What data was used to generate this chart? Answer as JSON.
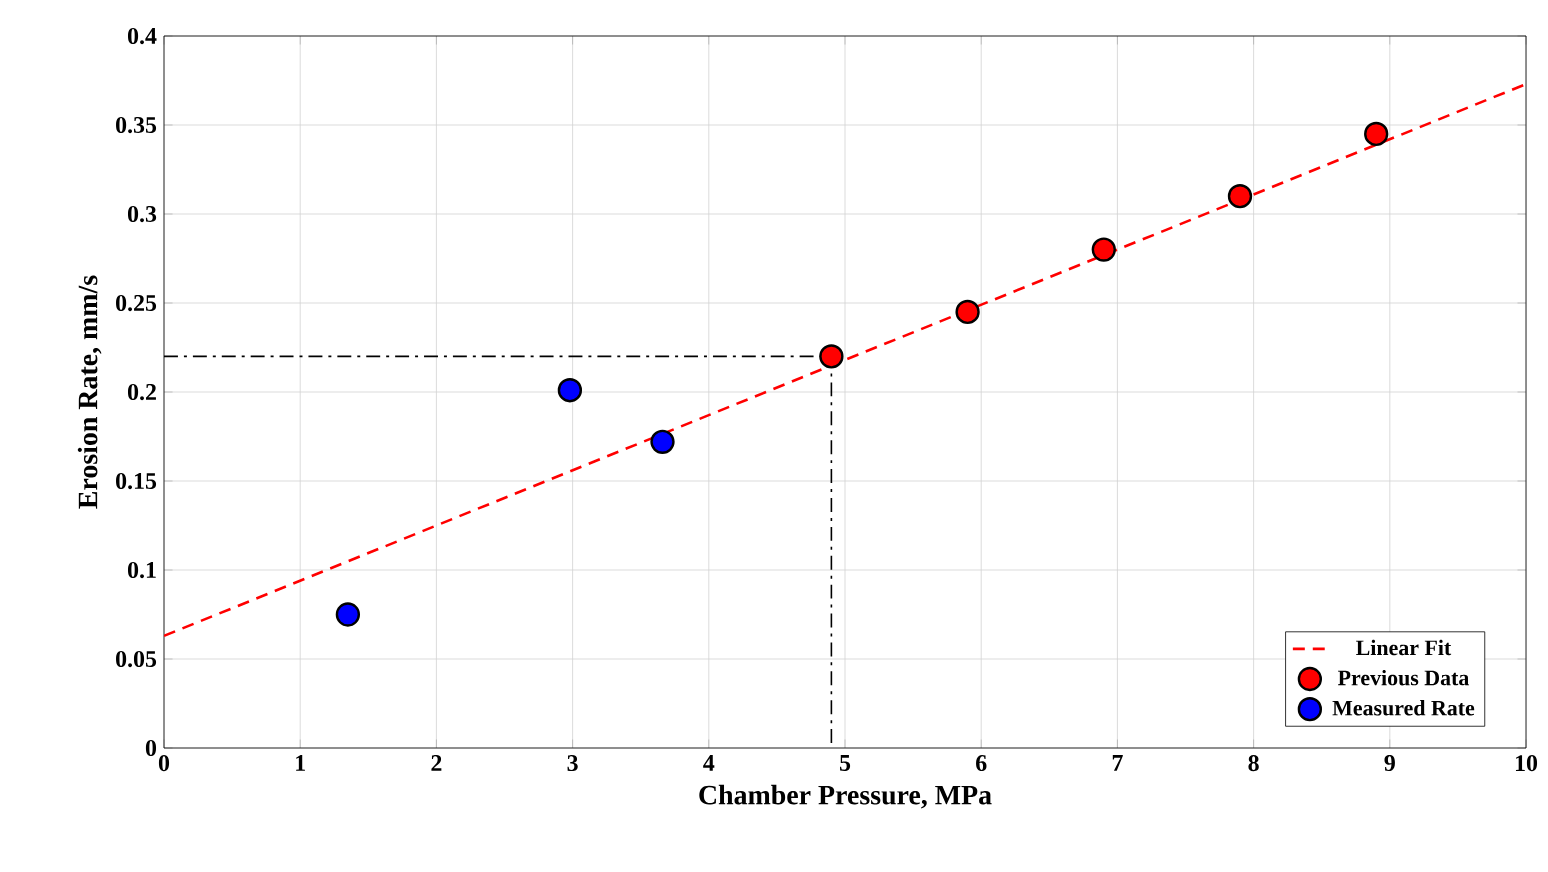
{
  "chart_data": {
    "type": "scatter",
    "xlabel": "Chamber Pressure,  MPa",
    "ylabel": "Erosion Rate,  mm/s",
    "xlim": [
      0,
      10
    ],
    "ylim": [
      0,
      0.4
    ],
    "xticks": [
      0,
      1,
      2,
      3,
      4,
      5,
      6,
      7,
      8,
      9,
      10
    ],
    "yticks": [
      0,
      0.05,
      0.1,
      0.15,
      0.2,
      0.25,
      0.3,
      0.35,
      0.4
    ],
    "grid": true,
    "legend": "bottom right",
    "marker": "circle",
    "series": [
      {
        "name": "Linear Fit",
        "type": "line",
        "line_style": "dashed",
        "marker": "none",
        "color": "#ff0000",
        "x": [
          0,
          10
        ],
        "values": [
          0.063,
          0.373
        ]
      },
      {
        "name": "Previous Data",
        "color": "#ff0000",
        "x": [
          4.9,
          5.9,
          6.9,
          7.9,
          8.9
        ],
        "values": [
          0.22,
          0.245,
          0.28,
          0.31,
          0.345
        ]
      },
      {
        "name": "Measured Rate",
        "color": "#0000ff",
        "x": [
          1.35,
          2.98,
          3.66
        ],
        "values": [
          0.075,
          0.201,
          0.172
        ]
      },
      {
        "type": "line",
        "line_style": "dashdot",
        "marker": "none",
        "color": "#000000",
        "x": [
          0,
          4.9,
          4.9
        ],
        "values": [
          0.22,
          0.22,
          0
        ]
      }
    ]
  }
}
